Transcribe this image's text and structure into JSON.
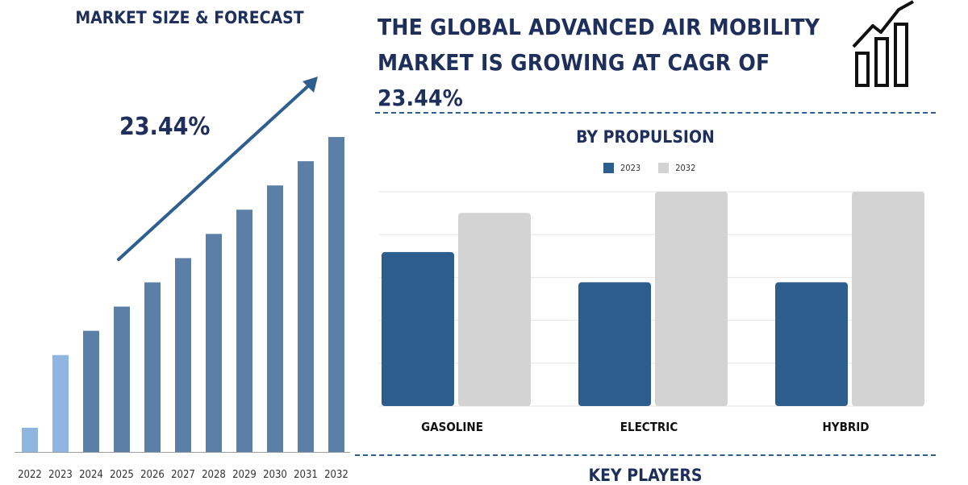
{
  "left_panel": {
    "title": "MARKET SIZE & FORECAST",
    "cagr_label": "23.44%"
  },
  "header": {
    "title": "THE GLOBAL ADVANCED AIR MOBILITY MARKET IS GROWING AT CAGR OF 23.44%"
  },
  "sections": {
    "key_players": "KEY PLAYERS"
  },
  "colors": {
    "primary_dark": "#1f2f5c",
    "bar_blue": "#5b7fa6",
    "bar_highlight": "#8fb6e0",
    "series_2023": "#2d5d8c",
    "series_2032": "#d3d3d3",
    "arrow": "#2e5f8f"
  },
  "chart_data": [
    {
      "type": "bar",
      "title": "MARKET SIZE & FORECAST",
      "categories": [
        "2022",
        "2023",
        "2024",
        "2025",
        "2026",
        "2027",
        "2028",
        "2029",
        "2030",
        "2031",
        "2032"
      ],
      "values": [
        1.0,
        4.0,
        5.0,
        6.0,
        7.0,
        8.0,
        9.0,
        10.0,
        11.0,
        12.0,
        13.0
      ],
      "highlighted": [
        "2022",
        "2023"
      ],
      "annotation": "23.44%",
      "ylim": [
        0,
        13.5
      ]
    },
    {
      "type": "bar",
      "title": "BY PROPULSION",
      "categories": [
        "GASOLINE",
        "ELECTRIC",
        "HYBRID"
      ],
      "series": [
        {
          "name": "2023",
          "values": [
            5.1,
            4.1,
            4.1
          ]
        },
        {
          "name": "2032",
          "values": [
            6.4,
            7.1,
            7.1
          ]
        }
      ],
      "ylim": [
        0,
        7.1
      ],
      "grid": true,
      "legend": "top-center"
    }
  ],
  "icons": {
    "growth_chart_icon": "growth-chart-icon"
  }
}
